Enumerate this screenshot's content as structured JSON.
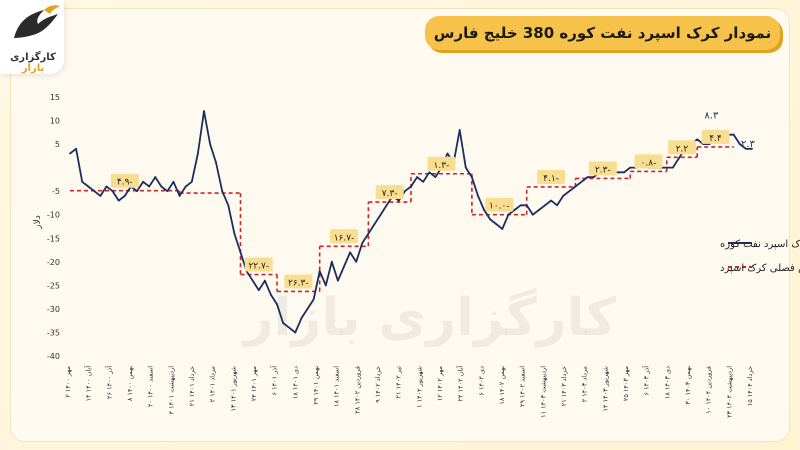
{
  "title": "نمودار کرک اسپرد نفت کوره 380 خلیج فارس",
  "logo": {
    "main": "کارگزاری",
    "accent": "بازار"
  },
  "watermark": "کارگزاری بازار",
  "colors": {
    "series": "#1c2e5e",
    "average": "#c62828",
    "label_bg": "#f9dd90",
    "accent": "#f7c24a"
  },
  "chart_data": {
    "type": "line",
    "ylabel": "دلار",
    "ylim": [
      -40,
      15
    ],
    "yticks": [
      15,
      10,
      5,
      -5,
      -10,
      -15,
      -20,
      -25,
      -30,
      -35,
      -40
    ],
    "x_labels": [
      "۲ مهر ۱۴۰۰",
      "۱۴ آبان ۱۴۰۰",
      "۲۶ آذر ۱۴۰۰",
      "۸ بهمن ۱۴۰۰",
      "۲۰ اسفند ۱۴۰۰",
      "۴ اردیبهشت ۱۴۰۱",
      "۲۱ خرداد ۱۴۰۱",
      "۲ مرداد ۱۴۰۱",
      "۱۳ شهریور ۱۴۰۱",
      "۲۴ مهر ۱۴۰۱",
      "۶ آذر ۱۴۰۱",
      "۱۸ دی ۱۴۰۱",
      "۲۹ بهمن ۱۴۰۱",
      "۱۸ اسفند ۱۴۰۱",
      "۲۸ فروردین ۱۴۰۲",
      "۹ خرداد ۱۴۰۲",
      "۲۱ تیر ۱۴۰۲",
      "۱ شهریور ۱۴۰۲",
      "۱۲ مهر ۱۴۰۲",
      "۲۴ آبان ۱۴۰۲",
      "۶ دی ۱۴۰۲",
      "۱۸ بهمن ۱۴۰۲",
      "۲۹ اسفند ۱۴۰۲",
      "۱۱ اردیبهشت ۱۴۰۳",
      "۲۱ خرداد ۱۴۰۳",
      "۲ مرداد ۱۴۰۳",
      "۱۴ شهریور ۱۴۰۳",
      "۲۵ مهر ۱۴۰۳",
      "۶ آذر ۱۴۰۳",
      "۱۸ دی ۱۴۰۳",
      "۳۰ بهمن ۱۴۰۳",
      "۱۰ فروردین ۱۴۰۴",
      "۲۳ اردیبهشت ۱۴۰۴",
      "۱۵ خرداد ۱۴۰۴"
    ],
    "series": [
      {
        "name": "کرک اسپرد نفت کوره",
        "values": [
          3,
          4,
          -3,
          -4,
          -5,
          -6,
          -4,
          -5,
          -7,
          -6,
          -4,
          -5,
          -3,
          -4,
          -2,
          -4,
          -5,
          -3,
          -6,
          -4,
          -3,
          3,
          12,
          5,
          1,
          -5,
          -8,
          -14,
          -18,
          -22,
          -24,
          -26,
          -24,
          -27,
          -29,
          -33,
          -34,
          -35,
          -32,
          -30,
          -28,
          -22,
          -25,
          -20,
          -24,
          -21,
          -18,
          -20,
          -16,
          -14,
          -12,
          -10,
          -8,
          -6,
          -7,
          -5,
          -4,
          -2,
          -3,
          -1,
          -2,
          0,
          3,
          1,
          8,
          0,
          -2,
          -6,
          -9,
          -11,
          -12,
          -13,
          -10,
          -9,
          -8,
          -8,
          -10,
          -9,
          -8,
          -7,
          -8,
          -6,
          -5,
          -4,
          -3,
          -2,
          -2,
          -1,
          -1,
          -1,
          -1,
          -1,
          0,
          0,
          1,
          0,
          0,
          0,
          0,
          0,
          2,
          4,
          5,
          6,
          5,
          5,
          6,
          7,
          7,
          7,
          5,
          4,
          4
        ]
      }
    ],
    "average_segments": [
      {
        "from": 0,
        "to": 18,
        "value": -4.9,
        "label": "۴.۹-"
      },
      {
        "from": 18,
        "to": 28,
        "value": -5.4,
        "label": ""
      },
      {
        "from": 28,
        "to": 34,
        "value": -22.7,
        "label": "۲۲.۷-"
      },
      {
        "from": 34,
        "to": 41,
        "value": -26.3,
        "label": "۲۶.۳-"
      },
      {
        "from": 41,
        "to": 49,
        "value": -16.7,
        "label": "۱۶.۷-"
      },
      {
        "from": 49,
        "to": 56,
        "value": -7.3,
        "label": "۷.۳-"
      },
      {
        "from": 56,
        "to": 66,
        "value": -1.3,
        "label": "۱.۳-"
      },
      {
        "from": 66,
        "to": 75,
        "value": -10.0,
        "label": "۱۰.۰-"
      },
      {
        "from": 75,
        "to": 83,
        "value": -4.1,
        "label": "۴.۱-"
      },
      {
        "from": 83,
        "to": 92,
        "value": -2.3,
        "label": "۲.۳-"
      },
      {
        "from": 92,
        "to": 98,
        "value": -0.8,
        "label": "۰.۸-"
      },
      {
        "from": 98,
        "to": 103,
        "value": 2.2,
        "label": "۲.۲"
      },
      {
        "from": 103,
        "to": 109,
        "value": 4.4,
        "label": "۴.۴"
      }
    ],
    "annotations": [
      {
        "text": "۸.۳",
        "x": 105,
        "y": 8.3
      },
      {
        "text": "۲.۳",
        "x": 111,
        "y": 2.3
      }
    ],
    "legend": [
      {
        "label": "کرک اسپرد نفت کوره",
        "style": "solid"
      },
      {
        "label": "میانگین فصلی کرک اسپرد",
        "style": "dashed"
      }
    ],
    "legend_position": "right"
  }
}
